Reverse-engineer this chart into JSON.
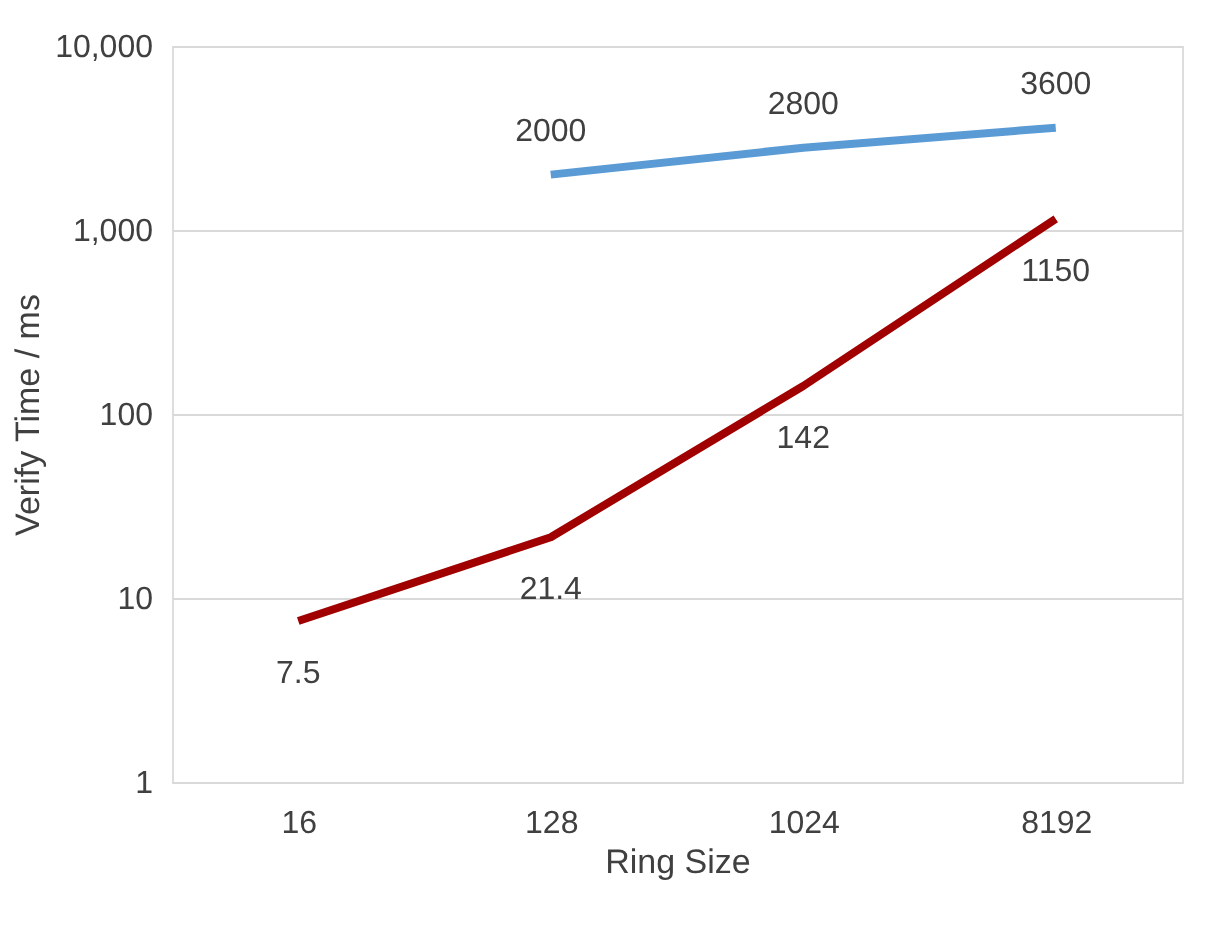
{
  "chart_data": {
    "type": "line",
    "xlabel": "Ring Size",
    "ylabel": "Verify Time / ms",
    "categories": [
      "16",
      "128",
      "1024",
      "8192"
    ],
    "series": [
      {
        "color": "#5b9bd5",
        "values": [
          null,
          2000,
          2800,
          3600
        ]
      },
      {
        "color": "#a00000",
        "values": [
          7.5,
          21.4,
          142,
          1150
        ]
      }
    ],
    "log": "y",
    "ylim": [
      1,
      10000
    ],
    "yticks": [
      1,
      10,
      100,
      {
        "value": 1000,
        "label": "1,000"
      },
      {
        "value": 10000,
        "label": "10,000"
      }
    ],
    "grid": "y",
    "legend": false,
    "marker": "none",
    "line_style": "solid",
    "data_labels": true
  }
}
